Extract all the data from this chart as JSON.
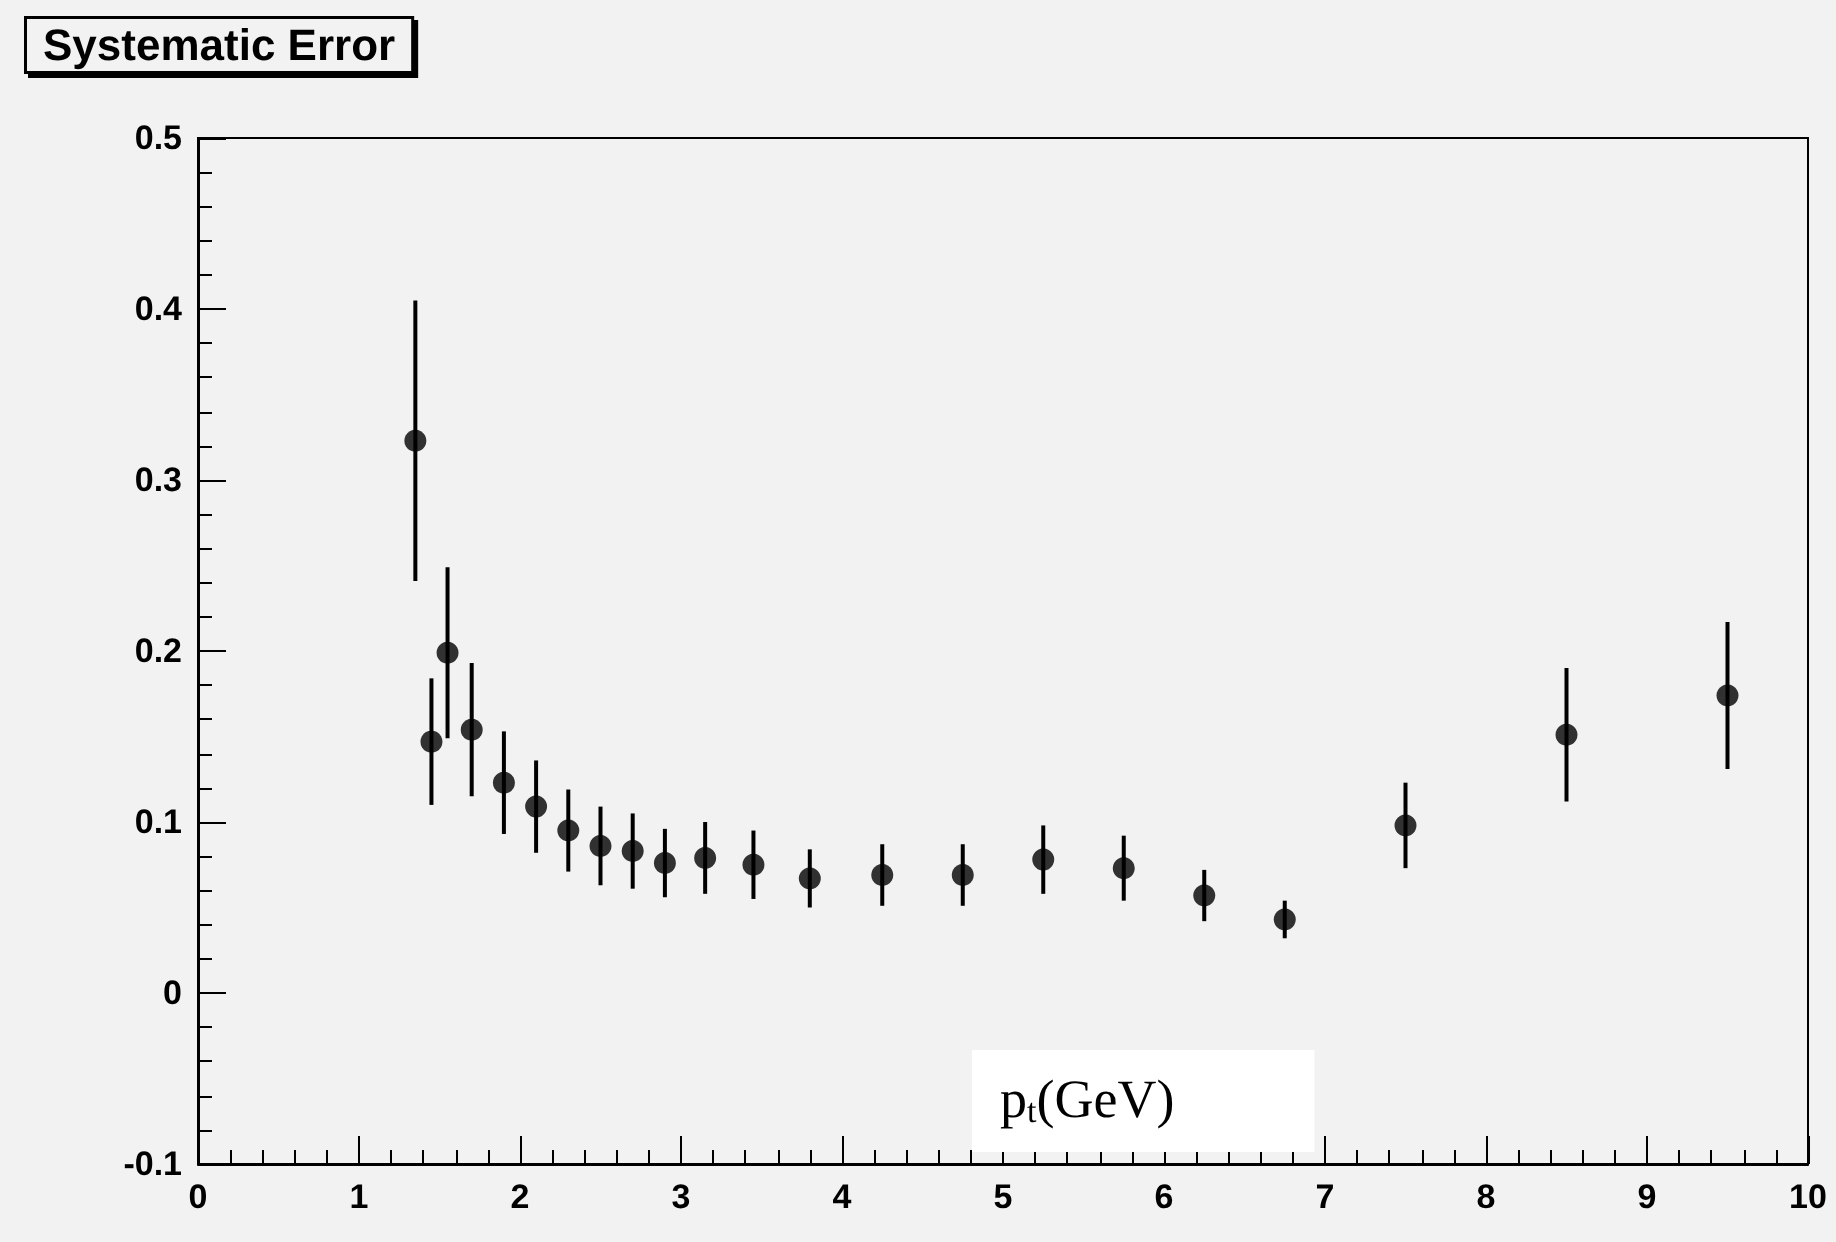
{
  "chart_data": {
    "type": "scatter",
    "title": "Systematic Error",
    "xlabel": "p$_{t}$(GeV)",
    "x": [
      1.35,
      1.45,
      1.55,
      1.7,
      1.9,
      2.1,
      2.3,
      2.5,
      2.7,
      2.9,
      3.15,
      3.45,
      3.8,
      4.25,
      4.75,
      5.25,
      5.75,
      6.25,
      6.75,
      7.5,
      8.5,
      9.5
    ],
    "values": [
      0.323,
      0.147,
      0.199,
      0.154,
      0.123,
      0.109,
      0.095,
      0.086,
      0.083,
      0.076,
      0.079,
      0.075,
      0.067,
      0.069,
      0.069,
      0.078,
      0.073,
      0.057,
      0.043,
      0.098,
      0.151,
      0.174
    ],
    "errors": [
      0.082,
      0.037,
      0.05,
      0.039,
      0.03,
      0.027,
      0.024,
      0.023,
      0.022,
      0.02,
      0.021,
      0.02,
      0.017,
      0.018,
      0.018,
      0.02,
      0.019,
      0.015,
      0.011,
      0.025,
      0.039,
      0.043
    ],
    "color": "#000000",
    "marker": "circle",
    "xlim": [
      0,
      10
    ],
    "xticks": [
      0,
      1,
      2,
      3,
      4,
      5,
      6,
      7,
      8,
      9,
      10
    ],
    "ylim": [
      -0.1,
      0.5
    ],
    "yticks": [
      -0.1,
      0,
      0.1,
      0.2,
      0.3,
      0.4,
      0.5
    ],
    "grid": false
  }
}
